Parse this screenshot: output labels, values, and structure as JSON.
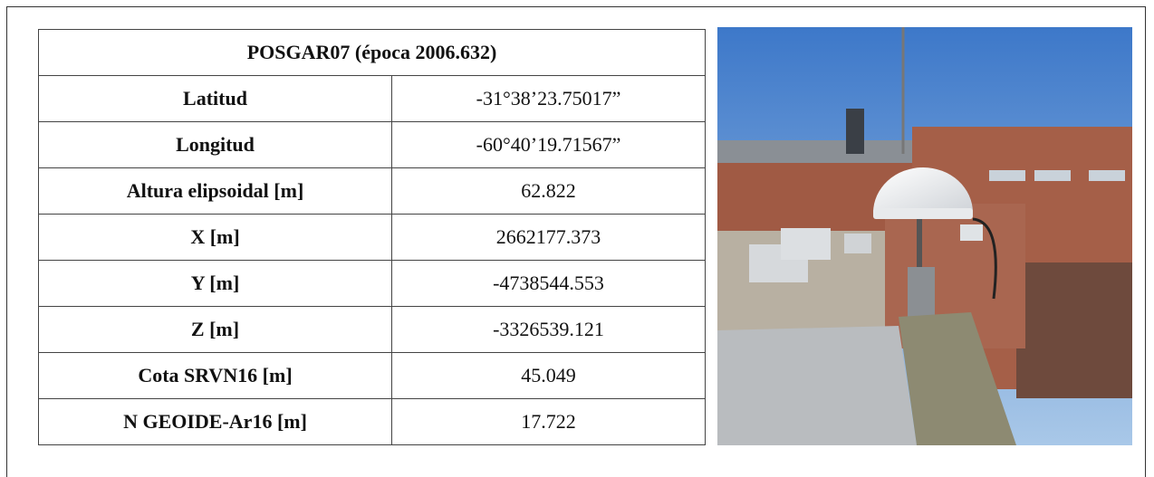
{
  "table": {
    "title": "POSGAR07 (época 2006.632)",
    "rows": [
      [
        "Latitud",
        "-31°38’23.75017”"
      ],
      [
        "Longitud",
        "-60°40’19.71567”"
      ],
      [
        "Altura elipsoidal [m]",
        "62.822"
      ],
      [
        "X [m]",
        "2662177.373"
      ],
      [
        "Y [m]",
        "-4738544.553"
      ],
      [
        "Z [m]",
        "-3326539.121"
      ],
      [
        "Cota SRVN16 [m]",
        "45.049"
      ],
      [
        "N GEOIDE-Ar16 [m]",
        "17.722"
      ]
    ]
  }
}
